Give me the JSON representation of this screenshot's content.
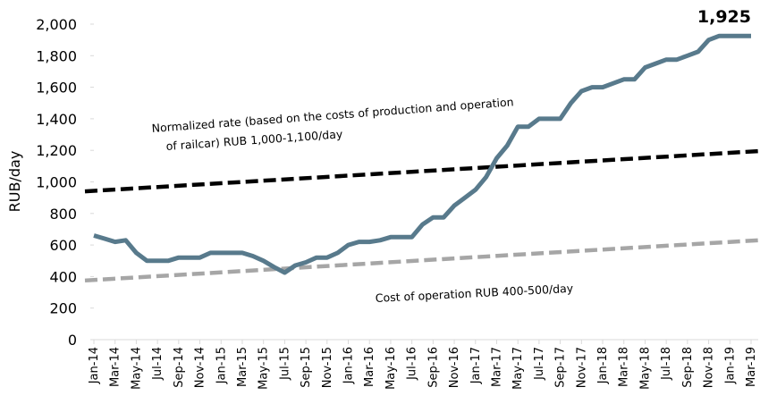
{
  "chart_data": {
    "type": "line",
    "y_label": "RUB/day",
    "categories": [
      "Jan-14",
      null,
      "Mar-14",
      null,
      "May-14",
      null,
      "Jul-14",
      null,
      "Sep-14",
      null,
      "Nov-14",
      null,
      "Jan-15",
      null,
      "Mar-15",
      null,
      "May-15",
      null,
      "Jul-15",
      null,
      "Sep-15",
      null,
      "Nov-15",
      null,
      "Jan-16",
      null,
      "Mar-16",
      null,
      "May-16",
      null,
      "Jul-16",
      null,
      "Sep-16",
      null,
      "Nov-16",
      null,
      "Jan-17",
      null,
      "Mar-17",
      null,
      "May-17",
      null,
      "Jul-17",
      null,
      "Sep-17",
      null,
      "Nov-17",
      null,
      "Jan-18",
      null,
      "Mar-18",
      null,
      "May-18",
      null,
      "Jul-18",
      null,
      "Sep-18",
      null,
      "Nov-18",
      null,
      "Jan-19",
      null,
      "Mar-19"
    ],
    "series": [
      {
        "color": "#587a8c",
        "values": [
          660,
          640,
          620,
          630,
          550,
          500,
          500,
          500,
          520,
          520,
          520,
          550,
          550,
          550,
          550,
          530,
          500,
          460,
          425,
          470,
          490,
          520,
          520,
          550,
          600,
          620,
          620,
          630,
          650,
          650,
          650,
          730,
          775,
          775,
          850,
          900,
          950,
          1030,
          1150,
          1230,
          1350,
          1350,
          1400,
          1400,
          1400,
          1500,
          1575,
          1600,
          1600,
          1625,
          1650,
          1650,
          1725,
          1750,
          1775,
          1775,
          1800,
          1825,
          1900,
          1925,
          1925,
          1925,
          1925
        ],
        "value_labels": [
          null,
          null,
          null,
          null,
          null,
          null,
          null,
          null,
          null,
          null,
          null,
          null,
          null,
          null,
          null,
          null,
          null,
          null,
          null,
          null,
          null,
          null,
          null,
          null,
          null,
          null,
          null,
          null,
          null,
          null,
          null,
          null,
          null,
          null,
          null,
          null,
          null,
          null,
          null,
          null,
          null,
          null,
          null,
          null,
          null,
          null,
          null,
          null,
          null,
          null,
          null,
          null,
          null,
          null,
          null,
          null,
          null,
          null,
          null,
          null,
          null,
          null,
          "1,925"
        ]
      }
    ],
    "reference_lines": [
      {
        "color": "#000000",
        "values": [
          940,
          1195
        ],
        "text": [
          "Normalized rate (based on the costs of production and operation",
          "of railcar) RUB 1,000-1,100/day"
        ]
      },
      {
        "color": "#a6a6a6",
        "values": [
          375,
          630
        ],
        "text": [
          "Cost of operation  RUB 400-500/day"
        ]
      }
    ],
    "ylim": [
      0,
      2000
    ],
    "yticks": [
      0,
      200,
      400,
      600,
      800,
      {
        "value": 1000,
        "label": "1,000"
      },
      {
        "value": 1200,
        "label": "1,200"
      },
      {
        "value": 1400,
        "label": "1,400"
      },
      {
        "value": 1600,
        "label": "1,600"
      },
      {
        "value": 1800,
        "label": "1,800"
      },
      {
        "value": 2000,
        "label": "2,000"
      }
    ]
  }
}
